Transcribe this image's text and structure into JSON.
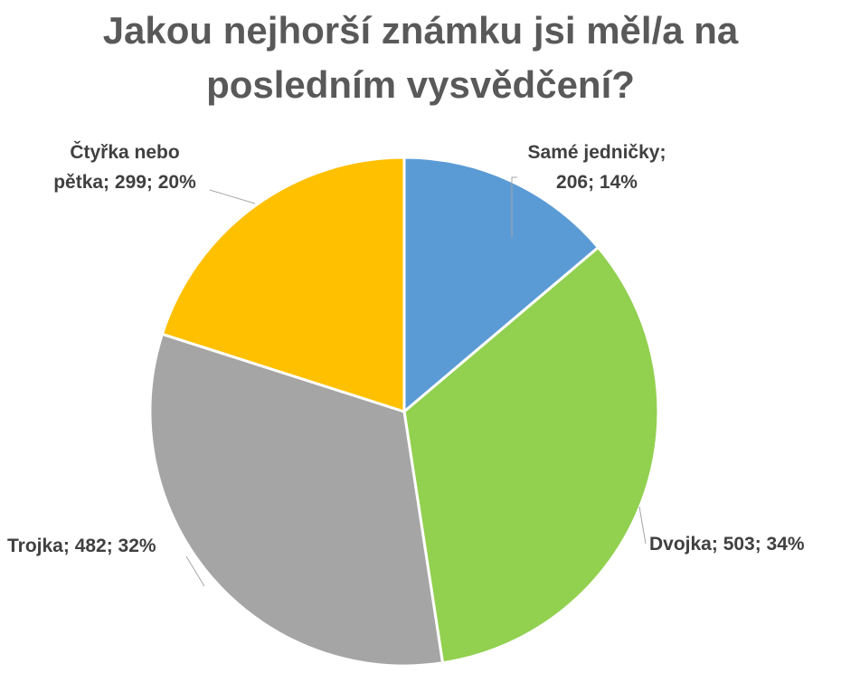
{
  "chart_data": {
    "type": "pie",
    "title_lines": [
      "Jakou nejhorší známku jsi měl/a na",
      "posledním vysvědčení?"
    ],
    "slices": [
      {
        "label_lines": [
          "Samé jedničky;",
          "206; 14%"
        ],
        "value": 206,
        "percent": 14,
        "color": "#5b9bd5"
      },
      {
        "label_lines": [
          "Dvojka; 503; 34%"
        ],
        "value": 503,
        "percent": 34,
        "color": "#92d050"
      },
      {
        "label_lines": [
          "Trojka; 482; 32%"
        ],
        "value": 482,
        "percent": 32,
        "color": "#a5a5a5"
      },
      {
        "label_lines": [
          "Čtyřka nebo",
          "pětka; 299; 20%"
        ],
        "value": 299,
        "percent": 20,
        "color": "#ffc000"
      }
    ]
  }
}
